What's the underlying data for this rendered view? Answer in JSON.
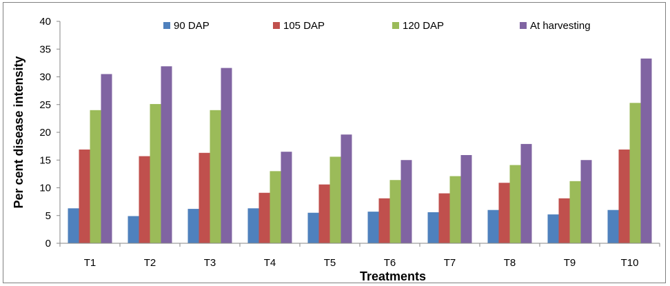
{
  "chart_data": {
    "type": "bar",
    "title": "",
    "xlabel": "Treatments",
    "ylabel": "Per cent disease intensity",
    "ylim": [
      0,
      40
    ],
    "yticks": [
      0,
      5,
      10,
      15,
      20,
      25,
      30,
      35,
      40
    ],
    "grid": false,
    "legend_position": "top",
    "categories": [
      "T1",
      "T2",
      "T3",
      "T4",
      "T5",
      "T6",
      "T7",
      "T8",
      "T9",
      "T10"
    ],
    "series": [
      {
        "name": "90 DAP",
        "color": "#4f81bd",
        "values": [
          6.3,
          4.9,
          6.2,
          6.3,
          5.5,
          5.7,
          5.6,
          6.0,
          5.2,
          6.0
        ]
      },
      {
        "name": "105 DAP",
        "color": "#c0504d",
        "values": [
          16.9,
          15.7,
          16.3,
          9.1,
          10.6,
          8.1,
          9.0,
          10.9,
          8.1,
          16.9
        ]
      },
      {
        "name": "120 DAP",
        "color": "#9bbb59",
        "values": [
          24.0,
          25.1,
          24.0,
          13.0,
          15.6,
          11.4,
          12.1,
          14.1,
          11.2,
          25.3
        ]
      },
      {
        "name": "At harvesting",
        "color": "#8064a2",
        "values": [
          30.5,
          31.9,
          31.6,
          16.5,
          19.6,
          15.0,
          15.9,
          17.9,
          15.0,
          33.3
        ]
      }
    ]
  }
}
